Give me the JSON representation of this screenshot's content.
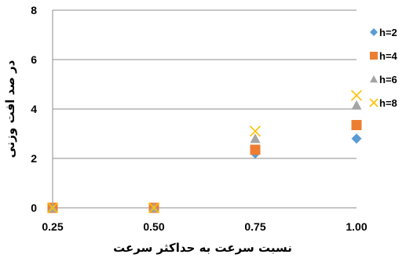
{
  "chart_data": {
    "type": "scatter",
    "xlabel": "نسبت سرعت به حداکثر سرعت",
    "ylabel": "در صد افت وزنی",
    "x": [
      0.25,
      0.5,
      0.75,
      1.0
    ],
    "x_tick_labels": [
      "0.25",
      "0.50",
      "0.75",
      "1.00"
    ],
    "ylim": [
      0,
      8
    ],
    "y_ticks": [
      0,
      2,
      4,
      6,
      8
    ],
    "y_tick_labels": [
      "0",
      "2",
      "4",
      "6",
      "8"
    ],
    "grid": "horizontal",
    "legend_position": "right",
    "series": [
      {
        "name": "h=2",
        "marker": "diamond",
        "color": "#5B9BD5",
        "values": [
          0,
          0,
          2.2,
          2.8
        ]
      },
      {
        "name": "h=4",
        "marker": "square",
        "color": "#ED7D31",
        "values": [
          0,
          0,
          2.35,
          3.35
        ]
      },
      {
        "name": "h=6",
        "marker": "triangle",
        "color": "#A5A5A5",
        "values": [
          0,
          0,
          2.8,
          4.15
        ]
      },
      {
        "name": "h=8",
        "marker": "x",
        "color": "#FFC000",
        "values": [
          0,
          0,
          3.1,
          4.55
        ]
      }
    ]
  }
}
